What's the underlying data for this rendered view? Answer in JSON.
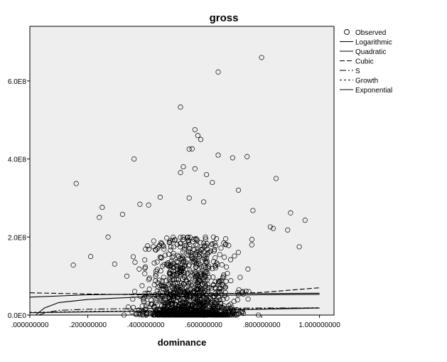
{
  "chart_data": {
    "type": "scatter",
    "title": "gross",
    "xlabel": "dominance",
    "ylabel": "",
    "xlim": [
      0.0,
      1.05
    ],
    "ylim": [
      0,
      740000000
    ],
    "x_ticks": [
      0.0,
      0.2,
      0.4,
      0.6,
      0.8,
      1.0
    ],
    "x_tick_labels": [
      ".000000000",
      ".200000000",
      ".400000000",
      ".600000000",
      ".800000000",
      "1.000000000"
    ],
    "y_ticks": [
      0,
      200000000,
      400000000,
      600000000
    ],
    "y_tick_labels": [
      "0.0E0",
      "2.0E8",
      "4.0E8",
      "6.0E8"
    ],
    "grid": false,
    "plot_background": "#eeeeee",
    "legend_position": "right",
    "legend": [
      {
        "label": "Observed",
        "marker": "circle"
      },
      {
        "label": "Logarithmic",
        "line": "solid"
      },
      {
        "label": "Quadratic",
        "line": "solid"
      },
      {
        "label": "Cubic",
        "line": "dashed"
      },
      {
        "label": "S",
        "line": "dashdot"
      },
      {
        "label": "Growth",
        "line": "shortdash"
      },
      {
        "label": "Exponential",
        "line": "solid"
      }
    ],
    "observed_outliers": [
      {
        "x": 0.8,
        "y": 660000000
      },
      {
        "x": 0.65,
        "y": 623000000
      },
      {
        "x": 0.52,
        "y": 533000000
      },
      {
        "x": 0.57,
        "y": 475000000
      },
      {
        "x": 0.58,
        "y": 460000000
      },
      {
        "x": 0.59,
        "y": 450000000
      },
      {
        "x": 0.55,
        "y": 425000000
      },
      {
        "x": 0.56,
        "y": 426000000
      },
      {
        "x": 0.36,
        "y": 400000000
      },
      {
        "x": 0.65,
        "y": 410000000
      },
      {
        "x": 0.75,
        "y": 406000000
      },
      {
        "x": 0.7,
        "y": 403000000
      },
      {
        "x": 0.53,
        "y": 380000000
      },
      {
        "x": 0.57,
        "y": 375000000
      },
      {
        "x": 0.61,
        "y": 360000000
      },
      {
        "x": 0.52,
        "y": 365000000
      },
      {
        "x": 0.85,
        "y": 350000000
      },
      {
        "x": 0.16,
        "y": 337000000
      },
      {
        "x": 0.63,
        "y": 340000000
      },
      {
        "x": 0.55,
        "y": 300000000
      },
      {
        "x": 0.72,
        "y": 320000000
      },
      {
        "x": 0.45,
        "y": 302000000
      },
      {
        "x": 0.6,
        "y": 290000000
      },
      {
        "x": 0.77,
        "y": 268000000
      },
      {
        "x": 0.9,
        "y": 262000000
      },
      {
        "x": 0.38,
        "y": 284000000
      },
      {
        "x": 0.41,
        "y": 282000000
      },
      {
        "x": 0.32,
        "y": 258000000
      },
      {
        "x": 0.24,
        "y": 250000000
      },
      {
        "x": 0.25,
        "y": 276000000
      },
      {
        "x": 0.95,
        "y": 243000000
      },
      {
        "x": 0.83,
        "y": 226000000
      },
      {
        "x": 0.84,
        "y": 222000000
      },
      {
        "x": 0.89,
        "y": 218000000
      },
      {
        "x": 0.27,
        "y": 200000000
      },
      {
        "x": 0.93,
        "y": 175000000
      },
      {
        "x": 0.21,
        "y": 150000000
      },
      {
        "x": 0.15,
        "y": 128000000
      }
    ],
    "observed_cluster": {
      "description_points": "dense cloud of observations",
      "x_center": 0.55,
      "x_spread": 0.13,
      "y_max": 200000000,
      "count": 1300
    },
    "fit_lines": [
      {
        "name": "Logarithmic",
        "style": "solid",
        "x": [
          0.02,
          0.05,
          0.1,
          0.2,
          0.4,
          0.6,
          0.8,
          1.0
        ],
        "y": [
          0,
          18000000,
          32000000,
          40000000,
          47000000,
          50000000,
          52000000,
          53000000
        ]
      },
      {
        "name": "Quadratic",
        "style": "solid",
        "x": [
          0.0,
          0.2,
          0.4,
          0.6,
          0.8,
          1.0
        ],
        "y": [
          46000000,
          52000000,
          54000000,
          55000000,
          55000000,
          56000000
        ]
      },
      {
        "name": "Cubic",
        "style": "dashed",
        "x": [
          0.0,
          0.2,
          0.4,
          0.6,
          0.8,
          1.0
        ],
        "y": [
          57000000,
          54000000,
          52000000,
          53000000,
          58000000,
          70000000
        ]
      },
      {
        "name": "S",
        "style": "dashdot",
        "x": [
          0.03,
          0.06,
          0.1,
          0.2,
          0.4,
          0.6,
          0.8,
          1.0
        ],
        "y": [
          0,
          7000000,
          12000000,
          15000000,
          17000000,
          17500000,
          18000000,
          18000000
        ]
      },
      {
        "name": "Growth",
        "style": "shortdash",
        "x": [
          0.0,
          0.2,
          0.4,
          0.6,
          0.8,
          1.0
        ],
        "y": [
          7000000,
          9000000,
          11000000,
          13000000,
          16000000,
          19000000
        ]
      },
      {
        "name": "Exponential",
        "style": "solid",
        "x": [
          0.0,
          0.2,
          0.4,
          0.6,
          0.8,
          1.0
        ],
        "y": [
          6000000,
          8000000,
          10000000,
          12000000,
          15000000,
          18000000
        ]
      }
    ]
  }
}
